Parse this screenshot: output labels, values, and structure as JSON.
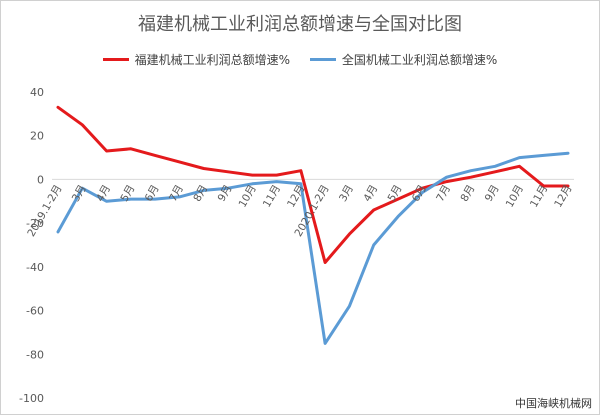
{
  "chart_data": {
    "type": "line",
    "title": "福建机械工业利润总额增速与全国对比图",
    "categories": [
      "2019.1-2月",
      "3月",
      "4月",
      "5月",
      "6月",
      "7月",
      "8月",
      "9月",
      "10月",
      "11月",
      "12月",
      "2020.1-2月",
      "3月",
      "4月",
      "5月",
      "6月",
      "7月",
      "8月",
      "9月",
      "10月",
      "11月",
      "12月"
    ],
    "series": [
      {
        "name": "福建机械工业利润总额增速%",
        "color": "#e41a1c",
        "values": [
          33,
          25,
          13,
          14,
          11,
          8,
          5,
          3.5,
          2,
          2,
          4,
          -38,
          -25,
          -14,
          -9,
          -4,
          -1,
          1,
          3.5,
          6,
          -3,
          -3
        ]
      },
      {
        "name": "全国机械工业利润总额增速%",
        "color": "#5b9bd5",
        "values": [
          -24,
          -4,
          -10,
          -9,
          -9,
          -8,
          -5,
          -4,
          -2,
          -1,
          -2,
          -75,
          -58,
          -30,
          -17,
          -6,
          1,
          4,
          6,
          10,
          11,
          12
        ]
      }
    ],
    "ylim": [
      -100,
      40
    ],
    "yticks": [
      40,
      20,
      0,
      -20,
      -40,
      -60,
      -80,
      -100
    ],
    "xlabel": "",
    "ylabel": "",
    "grid": false,
    "legend_position": "top"
  },
  "watermark": "中国海峡机械网"
}
